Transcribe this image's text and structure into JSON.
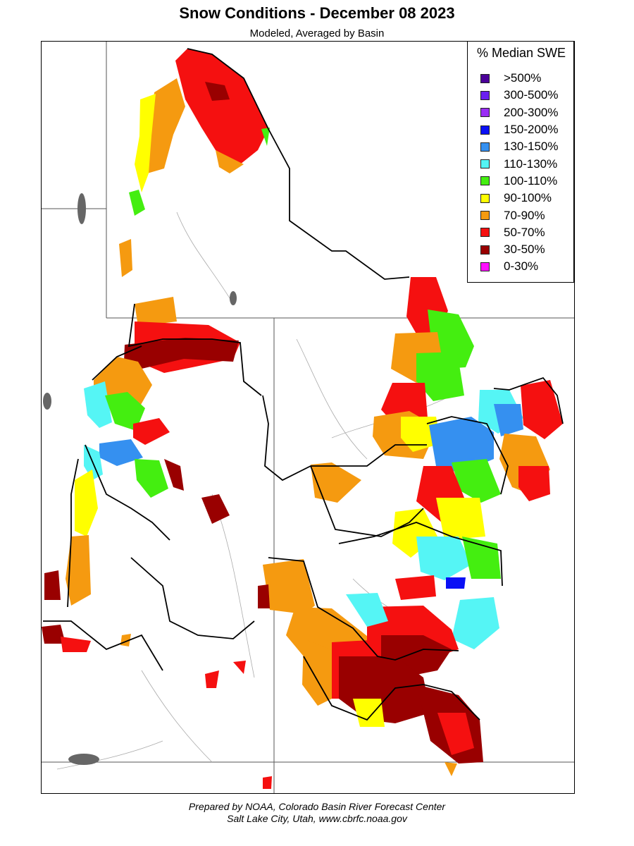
{
  "header": {
    "title": "Snow Conditions - December 08 2023",
    "subtitle": "Modeled, Averaged by Basin"
  },
  "legend": {
    "title": "% Median SWE",
    "items": [
      {
        "label": ">500%",
        "color": "#4b0099"
      },
      {
        "label": "300-500%",
        "color": "#6a1ff0"
      },
      {
        "label": "200-300%",
        "color": "#9a2ef5"
      },
      {
        "label": "150-200%",
        "color": "#0a10f5"
      },
      {
        "label": "130-150%",
        "color": "#3590f0"
      },
      {
        "label": "110-130%",
        "color": "#55f5f5"
      },
      {
        "label": "100-110%",
        "color": "#44ee10"
      },
      {
        "label": "90-100%",
        "color": "#ffff00"
      },
      {
        "label": "70-90%",
        "color": "#f59a10"
      },
      {
        "label": "50-70%",
        "color": "#f51010"
      },
      {
        "label": "30-50%",
        "color": "#990000"
      },
      {
        "label": "0-30%",
        "color": "#ff10ff"
      }
    ]
  },
  "footer": {
    "line1": "Prepared by NOAA, Colorado Basin River Forecast Center",
    "line2": "Salt Lake City, Utah, www.cbrfc.noaa.gov"
  }
}
